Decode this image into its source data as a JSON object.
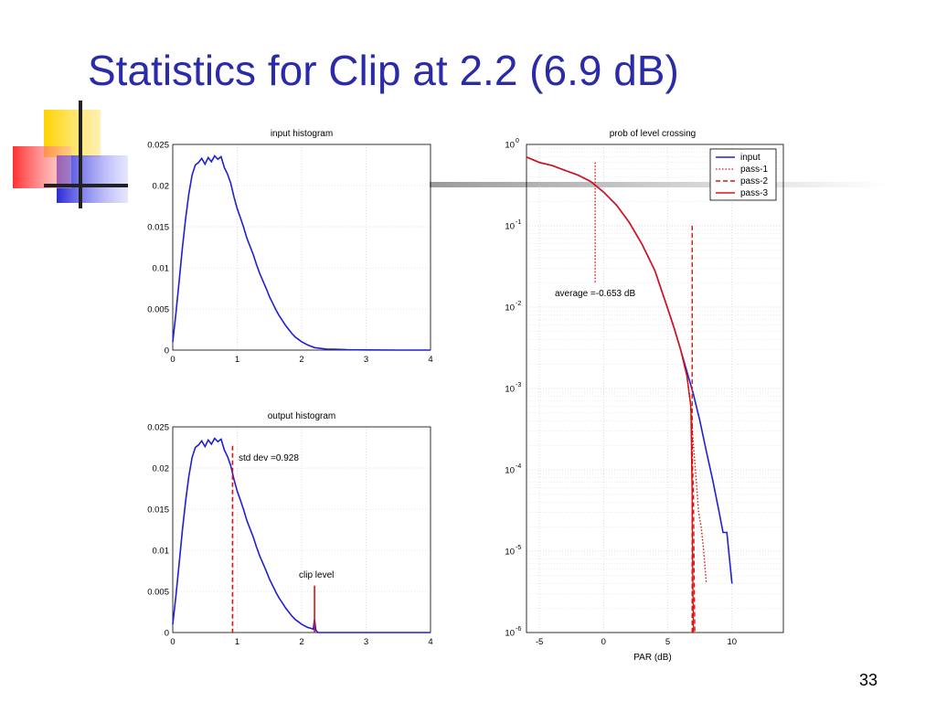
{
  "slide": {
    "title": "Statistics for Clip at 2.2 (6.9 dB)",
    "page_number": "33"
  },
  "colors": {
    "title": "#2b2ba8",
    "input": "#1f1fd6",
    "pass": "#e01010",
    "deco_yellow": "#ffd400",
    "deco_red": "#ff3030",
    "deco_blue": "#2a2ad8"
  },
  "chart_data": [
    {
      "type": "line",
      "title": "input histogram",
      "xlabel": "",
      "ylabel": "",
      "xlim": [
        0,
        4
      ],
      "ylim": [
        0,
        0.025
      ],
      "grid": true,
      "x_ticks": [
        "0",
        "1",
        "2",
        "3",
        "4"
      ],
      "y_ticks": [
        "0",
        "0.005",
        "0.01",
        "0.015",
        "0.02",
        "0.025"
      ],
      "series": [
        {
          "x": [
            0.0,
            0.05,
            0.1,
            0.15,
            0.2,
            0.25,
            0.3,
            0.35,
            0.4,
            0.45,
            0.5,
            0.55,
            0.6,
            0.65,
            0.7,
            0.75,
            0.8,
            0.85,
            0.9,
            0.95,
            1.0,
            1.05,
            1.1,
            1.15,
            1.2,
            1.25,
            1.3,
            1.35,
            1.4,
            1.45,
            1.5,
            1.55,
            1.6,
            1.65,
            1.7,
            1.75,
            1.8,
            1.85,
            1.9,
            1.95,
            2.0,
            2.1,
            2.2,
            2.3,
            2.4,
            2.5,
            2.7,
            3.0,
            3.5,
            4.0
          ],
          "y": [
            0.001,
            0.0045,
            0.0085,
            0.0125,
            0.016,
            0.019,
            0.0213,
            0.0225,
            0.0228,
            0.0233,
            0.0226,
            0.0234,
            0.0229,
            0.0236,
            0.0232,
            0.0235,
            0.0222,
            0.0214,
            0.0203,
            0.0186,
            0.0172,
            0.0161,
            0.0149,
            0.0136,
            0.0126,
            0.0116,
            0.0104,
            0.0093,
            0.0084,
            0.0075,
            0.0065,
            0.0057,
            0.0049,
            0.0042,
            0.0036,
            0.003,
            0.0025,
            0.002,
            0.0016,
            0.0013,
            0.001,
            0.0006,
            0.0003,
            0.0002,
            0.0001,
            0.0001,
            5e-05,
            2e-05,
            0.0,
            0.0
          ]
        }
      ]
    },
    {
      "type": "line",
      "title": "output histogram",
      "xlabel": "",
      "ylabel": "",
      "xlim": [
        0,
        4
      ],
      "ylim": [
        0,
        0.025
      ],
      "grid": true,
      "x_ticks": [
        "0",
        "1",
        "2",
        "3",
        "4"
      ],
      "y_ticks": [
        "0",
        "0.005",
        "0.01",
        "0.015",
        "0.02",
        "0.025"
      ],
      "annotations": [
        {
          "text": "std dev =0.928",
          "x": 0.928
        },
        {
          "text": "clip level",
          "x": 2.2
        }
      ],
      "series": [
        {
          "x": [
            0.0,
            0.05,
            0.1,
            0.15,
            0.2,
            0.25,
            0.3,
            0.35,
            0.4,
            0.45,
            0.5,
            0.55,
            0.6,
            0.65,
            0.7,
            0.75,
            0.8,
            0.85,
            0.9,
            0.95,
            1.0,
            1.05,
            1.1,
            1.15,
            1.2,
            1.25,
            1.3,
            1.35,
            1.4,
            1.45,
            1.5,
            1.55,
            1.6,
            1.65,
            1.7,
            1.75,
            1.8,
            1.85,
            1.9,
            1.95,
            2.0,
            2.05,
            2.1,
            2.15,
            2.18,
            2.2,
            2.22,
            2.25,
            2.3,
            2.5,
            3.0,
            4.0
          ],
          "y": [
            0.001,
            0.0045,
            0.0085,
            0.0125,
            0.016,
            0.019,
            0.0213,
            0.0225,
            0.0228,
            0.0233,
            0.0226,
            0.0234,
            0.0229,
            0.0236,
            0.0232,
            0.0235,
            0.0222,
            0.0214,
            0.0203,
            0.0186,
            0.0172,
            0.0161,
            0.0149,
            0.0136,
            0.0126,
            0.0116,
            0.0104,
            0.0093,
            0.0084,
            0.0075,
            0.0065,
            0.0057,
            0.0049,
            0.0042,
            0.0036,
            0.003,
            0.0025,
            0.002,
            0.0016,
            0.0013,
            0.001,
            0.0008,
            0.0006,
            0.0005,
            0.0004,
            0.0016,
            0.0003,
            0.0,
            0.0,
            0.0,
            0.0,
            0.0
          ]
        }
      ],
      "markers": [
        {
          "x": 0.928,
          "y_top": 0.0227,
          "style": "dashed"
        },
        {
          "x": 2.2,
          "y_top": 0.0057,
          "style": "solid"
        }
      ]
    },
    {
      "type": "line",
      "title": "prob of level crossing",
      "xlabel": "PAR (dB)",
      "ylabel": "",
      "xlim": [
        -6,
        14
      ],
      "ylim": [
        1e-06,
        1
      ],
      "yscale": "log",
      "grid": true,
      "x_ticks": [
        "-5",
        "0",
        "5",
        "10"
      ],
      "y_ticks": [
        {
          "base": "10",
          "exp": "-6"
        },
        {
          "base": "10",
          "exp": "-5"
        },
        {
          "base": "10",
          "exp": "-4"
        },
        {
          "base": "10",
          "exp": "-3"
        },
        {
          "base": "10",
          "exp": "-2"
        },
        {
          "base": "10",
          "exp": "-1"
        },
        {
          "base": "10",
          "exp": "0"
        }
      ],
      "legend_position": "top-right",
      "annotations": [
        {
          "text": "average =-0.653 dB",
          "x": -0.653
        }
      ],
      "series": [
        {
          "name": "input",
          "style": "solid",
          "x": [
            -6,
            -5,
            -4,
            -3,
            -2,
            -1,
            0,
            1,
            2,
            3,
            4,
            5,
            5.5,
            6,
            6.5,
            7,
            7.5,
            8,
            8.5,
            9,
            9.3,
            9.6,
            10
          ],
          "y": [
            0.7,
            0.6,
            0.55,
            0.48,
            0.42,
            0.35,
            0.26,
            0.18,
            0.11,
            0.059,
            0.028,
            0.0096,
            0.0055,
            0.003,
            0.0016,
            0.00085,
            0.0004,
            0.00017,
            7.5e-05,
            3e-05,
            1.7e-05,
            1.7e-05,
            4e-06
          ]
        },
        {
          "name": "pass-1",
          "style": "dotted",
          "x": [
            -6,
            -5,
            -4,
            -3,
            -2,
            -1,
            0,
            1,
            2,
            3,
            4,
            5,
            5.5,
            6,
            6.5,
            6.8,
            7.0,
            7.2,
            7.4,
            7.6,
            7.8,
            8.0
          ],
          "y": [
            0.7,
            0.6,
            0.55,
            0.48,
            0.42,
            0.35,
            0.26,
            0.18,
            0.11,
            0.059,
            0.028,
            0.0096,
            0.0055,
            0.003,
            0.0014,
            0.0006,
            0.0002,
            8e-05,
            3e-05,
            2e-05,
            1e-05,
            4e-06
          ]
        },
        {
          "name": "pass-2",
          "style": "dashed",
          "x": [
            -6,
            -5,
            -4,
            -3,
            -2,
            -1,
            0,
            1,
            2,
            3,
            4,
            5,
            5.5,
            6,
            6.5,
            6.8,
            7.0,
            7.05,
            7.1
          ],
          "y": [
            0.7,
            0.6,
            0.55,
            0.48,
            0.42,
            0.35,
            0.26,
            0.18,
            0.11,
            0.059,
            0.028,
            0.0096,
            0.0055,
            0.003,
            0.0014,
            0.0006,
            5e-05,
            5e-06,
            1e-06
          ]
        },
        {
          "name": "pass-3",
          "style": "solid",
          "x": [
            -6,
            -5,
            -4,
            -3,
            -2,
            -1,
            0,
            1,
            2,
            3,
            4,
            5,
            5.5,
            6,
            6.5,
            6.8,
            6.9,
            6.95,
            7.0
          ],
          "y": [
            0.7,
            0.6,
            0.55,
            0.48,
            0.42,
            0.35,
            0.26,
            0.18,
            0.11,
            0.059,
            0.028,
            0.0096,
            0.0055,
            0.003,
            0.0014,
            0.0006,
            5e-05,
            5e-06,
            1e-06
          ]
        }
      ],
      "markers": [
        {
          "x": -0.653,
          "y_range": [
            0.02,
            0.6
          ],
          "style": "dotted"
        },
        {
          "x": 6.9,
          "y_range": [
            1e-06,
            0.1
          ],
          "style": "dashed"
        }
      ]
    }
  ]
}
